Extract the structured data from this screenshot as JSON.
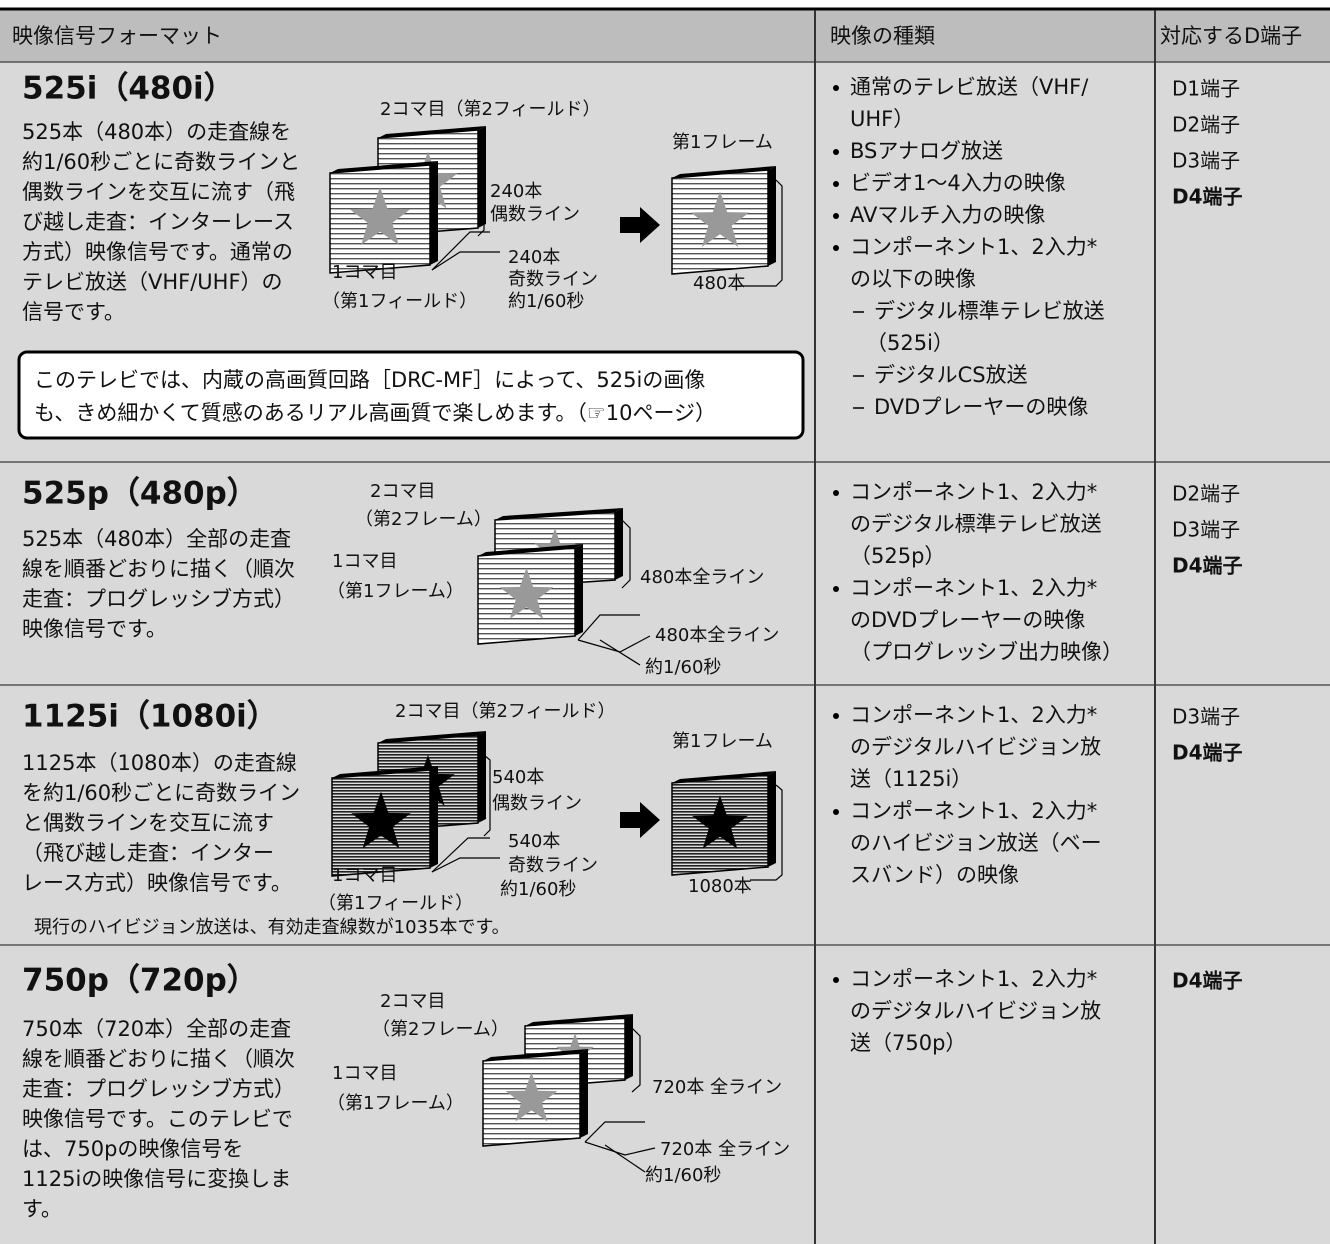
{
  "header": {
    "columns": [
      "映像信号フォーマット",
      "映像の種類",
      "対応するD端子"
    ]
  },
  "rows": [
    {
      "title": "525i（480i）",
      "description_lines": [
        "525本（480本）の走査線を",
        "約1/60秒ごとに奇数ラインと",
        "偶数ラインを交互に流す（飛",
        "び越し走査：インターレース",
        "方式）映像信号です。通常の",
        "テレビ放送（VHF/UHF）の",
        "信号です。"
      ],
      "diagram_labels": [
        "2コマ目（第2フィールド）",
        "第1フレーム",
        "240本",
        "偶数ライン",
        "240本",
        "奇数ライン",
        "1コマ目",
        "（第1フィールド）",
        "約1/60秒",
        "480本"
      ],
      "note_lines": [
        "このテレビでは、内蔵の高画質回路［DRC-MF］によって、525iの画像",
        "も、きめ細かくて質感のあるリアル高画質で楽しめます。（☞10ページ）"
      ],
      "types": [
        {
          "lines": [
            "通常のテレビ放送（VHF/",
            "UHF）"
          ]
        },
        {
          "lines": [
            "BSアナログ放送"
          ]
        },
        {
          "lines": [
            "ビデオ1～4入力の映像"
          ]
        },
        {
          "lines": [
            "AVマルチ入力の映像"
          ]
        },
        {
          "lines": [
            "コンポーネント1、2入力*",
            "の以下の映像"
          ],
          "subitems": [
            {
              "lines": [
                "デジタル標準テレビ放送",
                "（525i）"
              ]
            },
            {
              "lines": [
                "デジタルCS放送"
              ]
            },
            {
              "lines": [
                "DVDプレーヤーの映像"
              ]
            }
          ]
        }
      ],
      "terminals": [
        "D1端子",
        "D2端子",
        "D3端子",
        "D4端子"
      ]
    },
    {
      "title": "525p（480p）",
      "description_lines": [
        "525本（480本）全部の走査",
        "線を順番どおりに描く（順次",
        "走査：プログレッシブ方式）",
        "映像信号です。"
      ],
      "diagram_labels": [
        "2コマ目",
        "（第2フレーム）",
        "1コマ目",
        "（第1フレーム）",
        "480本全ライン",
        "480本全ライン",
        "約1/60秒"
      ],
      "types": [
        {
          "lines": [
            "コンポーネント1、2入力*",
            "のデジタル標準テレビ放送",
            "（525p）"
          ]
        },
        {
          "lines": [
            "コンポーネント1、2入力*",
            "のDVDプレーヤーの映像",
            "（プログレッシブ出力映像）"
          ]
        }
      ],
      "terminals": [
        "D2端子",
        "D3端子",
        "D4端子"
      ]
    },
    {
      "title": "1125i（1080i）",
      "description_lines": [
        "1125本（1080本）の走査線",
        "を約1/60秒ごとに奇数ライン",
        "と偶数ラインを交互に流す",
        "（飛び越し走査：インター",
        "レース方式）映像信号です。"
      ],
      "diagram_labels": [
        "2コマ目（第2フィールド）",
        "第1フレーム",
        "540本",
        "偶数ライン",
        "540本",
        "奇数ライン",
        "1コマ目",
        "（第1フィールド）",
        "約1/60秒",
        "1080本"
      ],
      "note_lines": [
        "現行のハイビジョン放送は、有効走査線数が1035本です。"
      ],
      "types": [
        {
          "lines": [
            "コンポーネント1、2入力*",
            "のデジタルハイビジョン放",
            "送（1125i）"
          ]
        },
        {
          "lines": [
            "コンポーネント1、2入力*",
            "のハイビジョン放送（ベー",
            "スバンド）の映像"
          ]
        }
      ],
      "terminals": [
        "D3端子",
        "D4端子"
      ]
    },
    {
      "title": "750p（720p）",
      "description_lines": [
        "750本（720本）全部の走査",
        "線を順番どおりに描く（順次",
        "走査：プログレッシブ方式）",
        "映像信号です。このテレビで",
        "は、750pの映像信号を",
        "1125iの映像信号に変換しま",
        "す。"
      ],
      "diagram_labels": [
        "2コマ目",
        "（第2フレーム）",
        "1コマ目",
        "（第1フレーム）",
        "720本 全ライン",
        "720本 全ライン",
        "約1/60秒"
      ],
      "types": [
        {
          "lines": [
            "コンポーネント1、2入力*",
            "のデジタルハイビジョン放",
            "送（750p）"
          ]
        }
      ],
      "terminals": [
        "D4端子"
      ]
    }
  ]
}
